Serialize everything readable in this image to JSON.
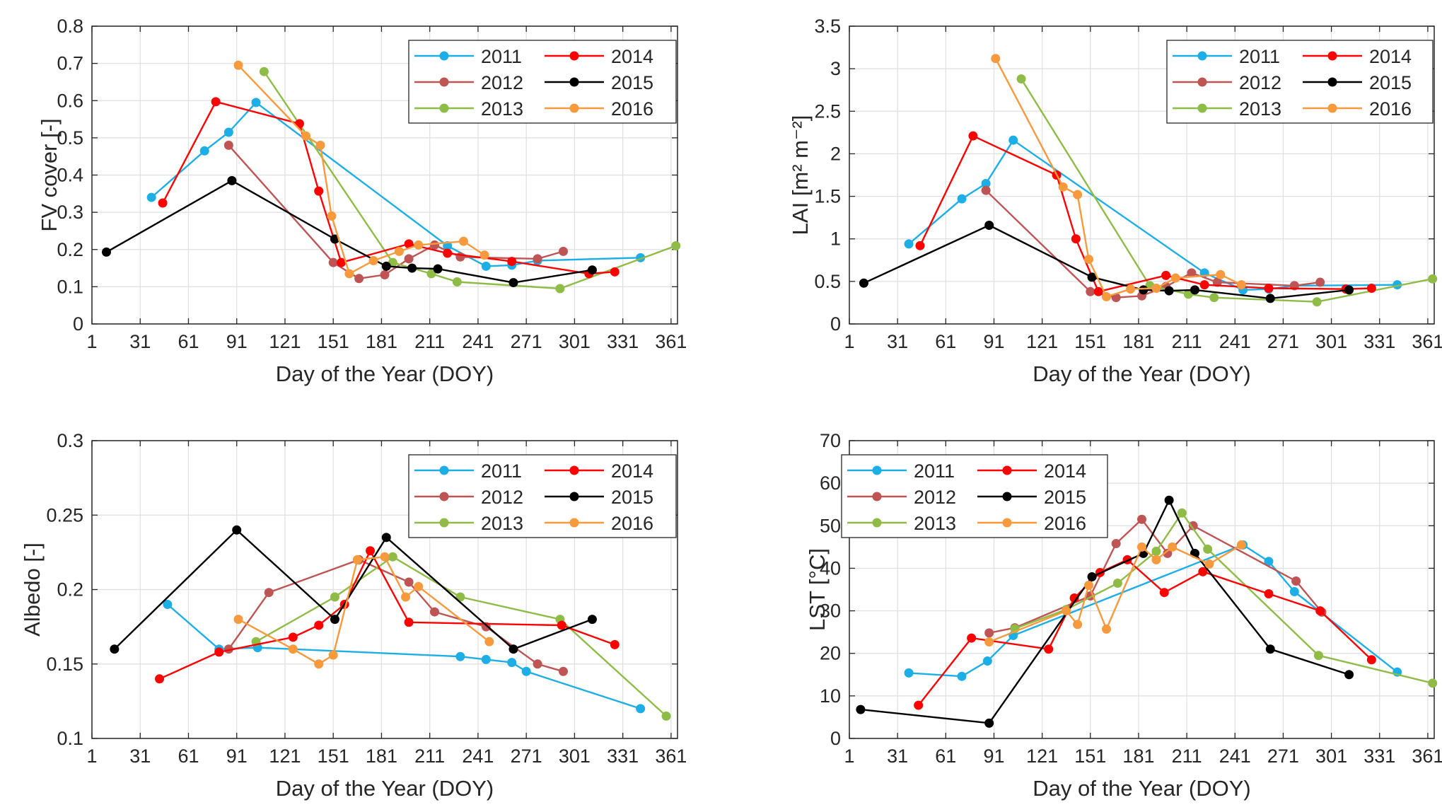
{
  "colors": {
    "2011": "#1eaee6",
    "2012": "#bf5455",
    "2013": "#8fbc46",
    "2014": "#ff0000",
    "2015": "#000000",
    "2016": "#f7993d",
    "grid": "#dfdfdf",
    "axis": "#262626"
  },
  "chart_data": [
    {
      "id": "fv",
      "type": "line",
      "xlabel": "Day of the Year (DOY)",
      "ylabel": "FV cover [-]",
      "xlim": [
        1,
        365
      ],
      "ylim": [
        0,
        0.8
      ],
      "xticks": [
        1,
        31,
        61,
        91,
        121,
        151,
        181,
        211,
        241,
        271,
        301,
        331,
        361
      ],
      "xticklabels": [
        "1",
        "31",
        "61",
        "91",
        "121",
        "151",
        "181",
        "211",
        "241",
        "271",
        "301",
        "331",
        "361"
      ],
      "yticks": [
        0,
        0.1,
        0.2,
        0.3,
        0.4,
        0.5,
        0.6,
        0.7,
        0.8
      ],
      "yticklabels": [
        "0",
        "0.1",
        "0.2",
        "0.3",
        "0.4",
        "0.5",
        "0.6",
        "0.7",
        "0.8"
      ],
      "legend_position": "top-right",
      "series": [
        {
          "name": "2011",
          "x": [
            38,
            71,
            86,
            103,
            222,
            246,
            262,
            278,
            342
          ],
          "y": [
            0.34,
            0.465,
            0.515,
            0.595,
            0.21,
            0.155,
            0.158,
            0.17,
            0.178
          ]
        },
        {
          "name": "2012",
          "x": [
            86,
            151,
            167,
            183,
            198,
            214,
            230,
            278,
            294
          ],
          "y": [
            0.48,
            0.165,
            0.122,
            0.132,
            0.175,
            0.212,
            0.18,
            0.175,
            0.195
          ]
        },
        {
          "name": "2013",
          "x": [
            108,
            188,
            212,
            228,
            292,
            364
          ],
          "y": [
            0.678,
            0.165,
            0.135,
            0.113,
            0.095,
            0.21
          ]
        },
        {
          "name": "2014",
          "x": [
            45,
            78,
            130,
            142,
            156,
            198,
            222,
            262,
            310,
            326
          ],
          "y": [
            0.325,
            0.597,
            0.538,
            0.357,
            0.165,
            0.215,
            0.19,
            0.168,
            0.135,
            0.14
          ]
        },
        {
          "name": "2015",
          "x": [
            10,
            88,
            152,
            184,
            200,
            216,
            263,
            312
          ],
          "y": [
            0.193,
            0.385,
            0.228,
            0.155,
            0.15,
            0.148,
            0.111,
            0.145
          ]
        },
        {
          "name": "2016",
          "x": [
            92,
            134,
            143,
            150,
            161,
            176,
            192,
            204,
            232,
            245
          ],
          "y": [
            0.695,
            0.505,
            0.48,
            0.29,
            0.135,
            0.17,
            0.195,
            0.212,
            0.222,
            0.185
          ]
        }
      ]
    },
    {
      "id": "lai",
      "type": "line",
      "xlabel": "Day of the Year (DOY)",
      "ylabel": "LAI [m² m⁻²]",
      "xlim": [
        1,
        365
      ],
      "ylim": [
        0,
        3.5
      ],
      "xticks": [
        1,
        31,
        61,
        91,
        121,
        151,
        181,
        211,
        241,
        271,
        301,
        331,
        361
      ],
      "xticklabels": [
        "1",
        "31",
        "61",
        "91",
        "121",
        "151",
        "181",
        "211",
        "241",
        "271",
        "301",
        "331",
        "361"
      ],
      "yticks": [
        0,
        0.5,
        1,
        1.5,
        2,
        2.5,
        3,
        3.5
      ],
      "yticklabels": [
        "0",
        "0.5",
        "1",
        "1.5",
        "2",
        "2.5",
        "3",
        "3.5"
      ],
      "legend_position": "top-right",
      "series": [
        {
          "name": "2011",
          "x": [
            38,
            71,
            86,
            103,
            222,
            246,
            262,
            278,
            342
          ],
          "y": [
            0.94,
            1.47,
            1.65,
            2.16,
            0.6,
            0.4,
            0.41,
            0.45,
            0.46
          ]
        },
        {
          "name": "2012",
          "x": [
            86,
            151,
            167,
            183,
            198,
            214,
            230,
            278,
            294
          ],
          "y": [
            1.57,
            0.38,
            0.31,
            0.33,
            0.44,
            0.6,
            0.49,
            0.45,
            0.49
          ]
        },
        {
          "name": "2013",
          "x": [
            108,
            188,
            212,
            228,
            292,
            364
          ],
          "y": [
            2.88,
            0.45,
            0.35,
            0.31,
            0.26,
            0.53
          ]
        },
        {
          "name": "2014",
          "x": [
            45,
            78,
            130,
            142,
            156,
            198,
            222,
            262,
            310,
            326
          ],
          "y": [
            0.92,
            2.21,
            1.75,
            1.0,
            0.38,
            0.57,
            0.46,
            0.42,
            0.41,
            0.42
          ]
        },
        {
          "name": "2015",
          "x": [
            10,
            88,
            152,
            184,
            200,
            216,
            263,
            312
          ],
          "y": [
            0.48,
            1.16,
            0.55,
            0.4,
            0.39,
            0.4,
            0.3,
            0.4
          ]
        },
        {
          "name": "2016",
          "x": [
            92,
            134,
            143,
            150,
            161,
            176,
            192,
            204,
            232,
            245
          ],
          "y": [
            3.12,
            1.61,
            1.52,
            0.76,
            0.32,
            0.41,
            0.42,
            0.54,
            0.58,
            0.46
          ]
        }
      ]
    },
    {
      "id": "albedo",
      "type": "line",
      "xlabel": "Day of the Year (DOY)",
      "ylabel": "Albedo [-]",
      "xlim": [
        1,
        365
      ],
      "ylim": [
        0.1,
        0.3
      ],
      "xticks": [
        1,
        31,
        61,
        91,
        121,
        151,
        181,
        211,
        241,
        271,
        301,
        331,
        361
      ],
      "xticklabels": [
        "1",
        "31",
        "61",
        "91",
        "121",
        "151",
        "181",
        "211",
        "241",
        "271",
        "301",
        "331",
        "361"
      ],
      "yticks": [
        0.1,
        0.15,
        0.2,
        0.25,
        0.3
      ],
      "yticklabels": [
        "0.1",
        "0.15",
        "0.2",
        "0.25",
        "0.3"
      ],
      "legend_position": "top-right",
      "series": [
        {
          "name": "2011",
          "x": [
            48,
            80,
            104,
            230,
            246,
            262,
            271,
            342
          ],
          "y": [
            0.19,
            0.16,
            0.161,
            0.155,
            0.153,
            0.151,
            0.145,
            0.12
          ]
        },
        {
          "name": "2012",
          "x": [
            86,
            111,
            167,
            198,
            214,
            246,
            278,
            294
          ],
          "y": [
            0.16,
            0.198,
            0.22,
            0.205,
            0.185,
            0.175,
            0.15,
            0.145
          ]
        },
        {
          "name": "2013",
          "x": [
            103,
            152,
            188,
            230,
            292,
            358
          ],
          "y": [
            0.165,
            0.195,
            0.222,
            0.195,
            0.18,
            0.115
          ]
        },
        {
          "name": "2014",
          "x": [
            43,
            80,
            126,
            142,
            158,
            174,
            198,
            293,
            326
          ],
          "y": [
            0.14,
            0.158,
            0.168,
            0.176,
            0.19,
            0.226,
            0.178,
            0.176,
            0.163
          ]
        },
        {
          "name": "2015",
          "x": [
            15,
            91,
            152,
            184,
            263,
            312
          ],
          "y": [
            0.16,
            0.24,
            0.18,
            0.235,
            0.16,
            0.18
          ]
        },
        {
          "name": "2016",
          "x": [
            92,
            126,
            142,
            151,
            166,
            183,
            196,
            204,
            248
          ],
          "y": [
            0.18,
            0.16,
            0.15,
            0.156,
            0.22,
            0.222,
            0.195,
            0.202,
            0.165
          ]
        }
      ]
    },
    {
      "id": "lst",
      "type": "line",
      "xlabel": "Day of the Year (DOY)",
      "ylabel": "LST [°C]",
      "xlim": [
        1,
        365
      ],
      "ylim": [
        0,
        70
      ],
      "xticks": [
        1,
        31,
        61,
        91,
        121,
        151,
        181,
        211,
        241,
        271,
        301,
        331,
        361
      ],
      "xticklabels": [
        "1",
        "31",
        "61",
        "91",
        "121",
        "151",
        "181",
        "211",
        "241",
        "271",
        "301",
        "331",
        "361"
      ],
      "yticks": [
        0,
        10,
        20,
        30,
        40,
        50,
        60,
        70
      ],
      "yticklabels": [
        "0",
        "10",
        "20",
        "30",
        "40",
        "50",
        "60",
        "70"
      ],
      "legend_position": "top-left",
      "series": [
        {
          "name": "2011",
          "x": [
            38,
            71,
            87,
            103,
            246,
            262,
            278,
            342
          ],
          "y": [
            15.4,
            14.6,
            18.2,
            24.2,
            45.5,
            41.6,
            34.5,
            15.6
          ]
        },
        {
          "name": "2012",
          "x": [
            88,
            104,
            151,
            167,
            183,
            199,
            215,
            279,
            295
          ],
          "y": [
            24.8,
            26.0,
            33.5,
            45.8,
            51.5,
            43.5,
            50.0,
            37.0,
            29.7
          ]
        },
        {
          "name": "2013",
          "x": [
            104,
            136,
            168,
            192,
            208,
            224,
            293,
            364
          ],
          "y": [
            25.8,
            30.3,
            36.5,
            44.0,
            53.0,
            44.5,
            19.5,
            13.0
          ]
        },
        {
          "name": "2014",
          "x": [
            44,
            77,
            125,
            141,
            157,
            174,
            197,
            221,
            262,
            294,
            326
          ],
          "y": [
            7.8,
            23.6,
            21.0,
            33.0,
            39.0,
            42.0,
            34.3,
            39.2,
            34.0,
            30.0,
            18.5
          ]
        },
        {
          "name": "2015",
          "x": [
            8,
            88,
            152,
            184,
            200,
            216,
            263,
            312
          ],
          "y": [
            6.8,
            3.6,
            38.0,
            43.5,
            56.0,
            43.5,
            21.0,
            15.0
          ]
        },
        {
          "name": "2016",
          "x": [
            88,
            136,
            143,
            150,
            161,
            183,
            192,
            202,
            225,
            245
          ],
          "y": [
            22.7,
            30.0,
            26.8,
            36.0,
            25.7,
            45.0,
            42.0,
            45.0,
            41.0,
            45.5
          ]
        }
      ]
    }
  ]
}
